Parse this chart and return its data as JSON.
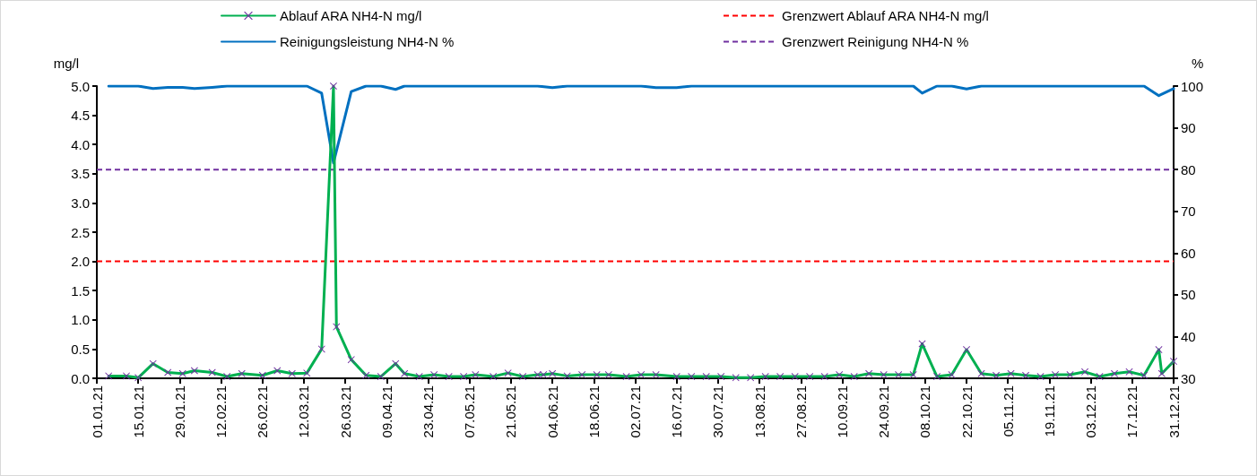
{
  "chart_data": {
    "type": "line",
    "ylabel": "mg/l",
    "y2label": "%",
    "xlim": [
      "--01-01",
      "--12-31"
    ],
    "xticks": [
      {
        "value": "--01-01",
        "label": "01.01.21"
      },
      {
        "value": "--01-15",
        "label": "15.01.21"
      },
      {
        "value": "--01-29",
        "label": "29.01.21"
      },
      {
        "value": "--02-12",
        "label": "12.02.21"
      },
      {
        "value": "--02-26",
        "label": "26.02.21"
      },
      {
        "value": "--03-12",
        "label": "12.03.21"
      },
      {
        "value": "--03-26",
        "label": "26.03.21"
      },
      {
        "value": "--04-09",
        "label": "09.04.21"
      },
      {
        "value": "--04-23",
        "label": "23.04.21"
      },
      {
        "value": "--05-07",
        "label": "07.05.21"
      },
      {
        "value": "--05-21",
        "label": "21.05.21"
      },
      {
        "value": "--06-04",
        "label": "04.06.21"
      },
      {
        "value": "--06-18",
        "label": "18.06.21"
      },
      {
        "value": "--07-02",
        "label": "02.07.21"
      },
      {
        "value": "--07-16",
        "label": "16.07.21"
      },
      {
        "value": "--07-30",
        "label": "30.07.21"
      },
      {
        "value": "--08-13",
        "label": "13.08.21"
      },
      {
        "value": "--08-27",
        "label": "27.08.21"
      },
      {
        "value": "--09-10",
        "label": "10.09.21"
      },
      {
        "value": "--09-24",
        "label": "24.09.21"
      },
      {
        "value": "--10-08",
        "label": "08.10.21"
      },
      {
        "value": "--10-22",
        "label": "22.10.21"
      },
      {
        "value": "--11-05",
        "label": "05.11.21"
      },
      {
        "value": "--11-19",
        "label": "19.11.21"
      },
      {
        "value": "--12-03",
        "label": "03.12.21"
      },
      {
        "value": "--12-17",
        "label": "17.12.21"
      },
      {
        "value": "--12-31",
        "label": "31.12.21"
      }
    ],
    "ylim": [
      0,
      5
    ],
    "yticks": [
      {
        "value": 0,
        "label": "0.0"
      },
      {
        "value": 0.5,
        "label": "0.5"
      },
      {
        "value": 1,
        "label": "1.0"
      },
      {
        "value": 1.5,
        "label": "1.5"
      },
      {
        "value": 2,
        "label": "2.0"
      },
      {
        "value": 2.5,
        "label": "2.5"
      },
      {
        "value": 3,
        "label": "3.0"
      },
      {
        "value": 3.5,
        "label": "3.5"
      },
      {
        "value": 4,
        "label": "4.0"
      },
      {
        "value": 4.5,
        "label": "4.5"
      },
      {
        "value": 5,
        "label": "5.0"
      }
    ],
    "y2lim": [
      30,
      100
    ],
    "y2ticks": [
      30,
      40,
      50,
      60,
      70,
      80,
      90,
      100
    ],
    "grid": false,
    "legend": "top",
    "series": [
      {
        "name": "Ablauf ARA NH4-N mg/l",
        "color": "#00b050",
        "marker": "cross",
        "line_style": "solid",
        "x": [
          "--01-05",
          "--01-11",
          "--01-15",
          "--01-20",
          "--01-25",
          "--01-30",
          "--02-03",
          "--02-09",
          "--02-14",
          "--02-19",
          "--02-26",
          "--03-03",
          "--03-08",
          "--03-13",
          "--03-18",
          "--03-22",
          "--03-23",
          "--03-28",
          "--04-02",
          "--04-07",
          "--04-12",
          "--04-15",
          "--04-20",
          "--04-25",
          "--04-30",
          "--05-05",
          "--05-09",
          "--05-15",
          "--05-20",
          "--05-25",
          "--05-30",
          "--06-01",
          "--06-04",
          "--06-09",
          "--06-14",
          "--06-19",
          "--06-23",
          "--06-29",
          "--07-04",
          "--07-09",
          "--07-16",
          "--07-21",
          "--07-26",
          "--07-31",
          "--08-05",
          "--08-10",
          "--08-15",
          "--08-20",
          "--08-25",
          "--08-30",
          "--09-04",
          "--09-09",
          "--09-14",
          "--09-19",
          "--09-24",
          "--09-29",
          "--10-04",
          "--10-07",
          "--10-12",
          "--10-17",
          "--10-22",
          "--10-27",
          "--11-01",
          "--11-06",
          "--11-11",
          "--11-16",
          "--11-21",
          "--11-26",
          "--12-01",
          "--12-06",
          "--12-11",
          "--12-16",
          "--12-21",
          "--12-26",
          "--12-27",
          "--12-31"
        ],
        "values": [
          0.04,
          0.04,
          0.01,
          0.25,
          0.1,
          0.08,
          0.13,
          0.1,
          0.03,
          0.08,
          0.05,
          0.13,
          0.08,
          0.09,
          0.5,
          5,
          0.88,
          0.32,
          0.05,
          0.03,
          0.25,
          0.08,
          0.03,
          0.06,
          0.03,
          0.03,
          0.06,
          0.03,
          0.09,
          0.03,
          0.06,
          0.06,
          0.08,
          0.04,
          0.06,
          0.06,
          0.06,
          0.03,
          0.06,
          0.06,
          0.03,
          0.03,
          0.03,
          0.03,
          0.01,
          0.01,
          0.03,
          0.03,
          0.03,
          0.03,
          0.03,
          0.06,
          0.03,
          0.08,
          0.06,
          0.06,
          0.06,
          0.59,
          0.03,
          0.06,
          0.49,
          0.08,
          0.05,
          0.08,
          0.05,
          0.03,
          0.06,
          0.06,
          0.11,
          0.03,
          0.08,
          0.11,
          0.05,
          0.49,
          0.08,
          0.29
        ],
        "colors": [
          "#7030a0",
          "#7030a0",
          "#7030a0",
          "#7030a0",
          "#7030a0",
          "#7030a0",
          "#7030a0",
          "#7030a0",
          "#7030a0",
          "#7030a0",
          "#7030a0",
          "#7030a0",
          "#7030a0",
          "#7030a0",
          "#7030a0",
          "#7030a0",
          "#7030a0",
          "#7030a0",
          "#7030a0",
          "#7030a0",
          "#7030a0",
          "#7030a0",
          "#7030a0",
          "#7030a0",
          "#7030a0",
          "#7030a0",
          "#7030a0",
          "#7030a0",
          "#7030a0",
          "#7030a0",
          "#7030a0",
          "#7030a0",
          "#7030a0",
          "#7030a0",
          "#7030a0",
          "#7030a0",
          "#7030a0",
          "#7030a0",
          "#7030a0",
          "#7030a0",
          "#7030a0",
          "#7030a0",
          "#7030a0",
          "#7030a0",
          "#7030a0",
          "#7030a0",
          "#7030a0",
          "#7030a0",
          "#7030a0",
          "#7030a0",
          "#7030a0",
          "#7030a0",
          "#7030a0",
          "#7030a0",
          "#7030a0",
          "#7030a0",
          "#7030a0",
          "#7030a0",
          "#7030a0",
          "#7030a0",
          "#7030a0",
          "#7030a0",
          "#7030a0",
          "#7030a0",
          "#7030a0",
          "#7030a0",
          "#7030a0",
          "#7030a0",
          "#7030a0",
          "#7030a0",
          "#7030a0",
          "#7030a0",
          "#7030a0",
          "#7030a0",
          "#7030a0",
          "#7030a0"
        ]
      },
      {
        "name": "Reinigungsleistung NH4-N %",
        "color": "#0070c0",
        "marker": "none",
        "line_style": "solid",
        "axis": "y2",
        "x": [
          "--01-05",
          "--01-11",
          "--01-15",
          "--01-20",
          "--01-25",
          "--01-30",
          "--02-03",
          "--02-09",
          "--02-14",
          "--02-19",
          "--02-26",
          "--03-03",
          "--03-08",
          "--03-13",
          "--03-18",
          "--03-22",
          "--03-28",
          "--04-02",
          "--04-07",
          "--04-12",
          "--04-15",
          "--05-30",
          "--06-04",
          "--06-09",
          "--07-04",
          "--07-09",
          "--07-16",
          "--07-21",
          "--10-04",
          "--10-07",
          "--10-12",
          "--10-17",
          "--10-22",
          "--10-27",
          "--12-21",
          "--12-26",
          "--12-31"
        ],
        "values": [
          100,
          100,
          100,
          99.4,
          99.7,
          99.7,
          99.4,
          99.7,
          100,
          100,
          100,
          100,
          100,
          100,
          98.3,
          81.6,
          98.7,
          100,
          100,
          99.2,
          100,
          100,
          99.6,
          100,
          100,
          99.6,
          99.6,
          100,
          100,
          98.3,
          100,
          100,
          99.3,
          100,
          100,
          97.7,
          99.4
        ]
      }
    ],
    "ref_lines": [
      {
        "axis": "y",
        "value": 2,
        "label": "Grenzwert Ablauf ARA NH4-N mg/l",
        "color": "#ff0000",
        "line_style": "dashed"
      },
      {
        "axis": "y2",
        "value": 80,
        "label": "Grenzwert Reinigung NH4-N %",
        "color": "#7030a0",
        "line_style": "dashed"
      }
    ]
  }
}
